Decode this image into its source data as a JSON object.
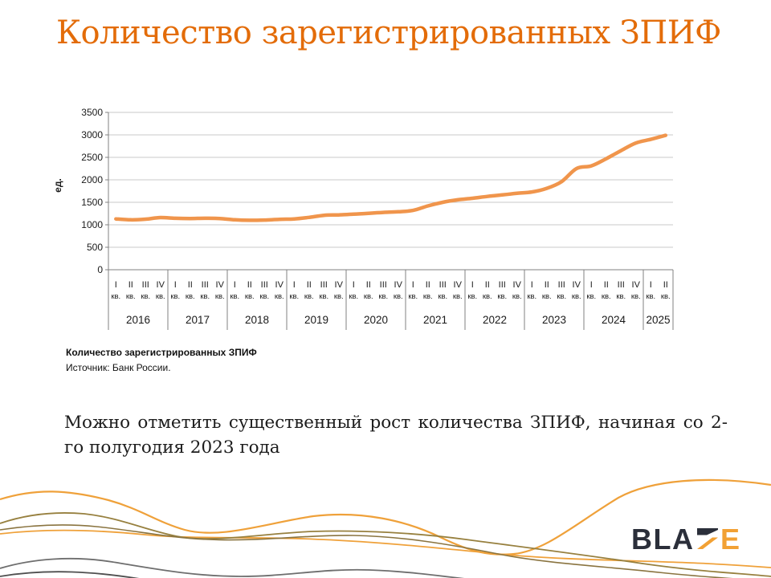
{
  "slide": {
    "title": "Количество зарегистрированных ЗПИФ"
  },
  "chart": {
    "caption_title": "Количество зарегистрированных ЗПИФ",
    "caption_source": "Источник:  Банк России."
  },
  "chart_data": {
    "type": "line",
    "title": "Количество зарегистрированных ЗПИФ",
    "xlabel": "",
    "ylabel": "ед.",
    "ylim": [
      0,
      3500
    ],
    "ytick_step": 500,
    "grid": true,
    "legend": false,
    "line_color": "#F0954C",
    "quarter_suffix": "кв.",
    "groups": [
      {
        "year": "2016",
        "quarters": [
          "I",
          "II",
          "III",
          "IV"
        ]
      },
      {
        "year": "2017",
        "quarters": [
          "I",
          "II",
          "III",
          "IV"
        ]
      },
      {
        "year": "2018",
        "quarters": [
          "I",
          "II",
          "III",
          "IV"
        ]
      },
      {
        "year": "2019",
        "quarters": [
          "I",
          "II",
          "III",
          "IV"
        ]
      },
      {
        "year": "2020",
        "quarters": [
          "I",
          "II",
          "III",
          "IV"
        ]
      },
      {
        "year": "2021",
        "quarters": [
          "I",
          "II",
          "III",
          "IV"
        ]
      },
      {
        "year": "2022",
        "quarters": [
          "I",
          "II",
          "III",
          "IV"
        ]
      },
      {
        "year": "2023",
        "quarters": [
          "I",
          "II",
          "III",
          "IV"
        ]
      },
      {
        "year": "2024",
        "quarters": [
          "I",
          "II",
          "III",
          "IV"
        ]
      },
      {
        "year": "2025",
        "quarters": [
          "I",
          "II"
        ]
      }
    ],
    "categories": [
      "I кв. 2016",
      "II кв. 2016",
      "III кв. 2016",
      "IV кв. 2016",
      "I кв. 2017",
      "II кв. 2017",
      "III кв. 2017",
      "IV кв. 2017",
      "I кв. 2018",
      "II кв. 2018",
      "III кв. 2018",
      "IV кв. 2018",
      "I кв. 2019",
      "II кв. 2019",
      "III кв. 2019",
      "IV кв. 2019",
      "I кв. 2020",
      "II кв. 2020",
      "III кв. 2020",
      "IV кв. 2020",
      "I кв. 2021",
      "II кв. 2021",
      "III кв. 2021",
      "IV кв. 2021",
      "I кв. 2022",
      "II кв. 2022",
      "III кв. 2022",
      "IV кв. 2022",
      "I кв. 2023",
      "II кв. 2023",
      "III кв. 2023",
      "IV кв. 2023",
      "I кв. 2024",
      "II кв. 2024",
      "III кв. 2024",
      "IV кв. 2024",
      "I кв. 2025",
      "II кв. 2025"
    ],
    "series": [
      {
        "name": "Количество зарегистрированных ЗПИФ",
        "values": [
          1130,
          1110,
          1125,
          1160,
          1145,
          1140,
          1145,
          1140,
          1110,
          1100,
          1105,
          1120,
          1130,
          1165,
          1210,
          1220,
          1235,
          1255,
          1275,
          1290,
          1320,
          1420,
          1500,
          1555,
          1590,
          1630,
          1665,
          1700,
          1730,
          1810,
          1960,
          2250,
          2310,
          2470,
          2650,
          2820,
          2900,
          2990
        ]
      }
    ]
  },
  "body": {
    "text": "Можно отметить существенный рост количества ЗПИФ, начиная со 2-го полугодия 2023 года"
  },
  "logo": {
    "text_dark": "BLA",
    "text_split": "Z",
    "text_accent": "E",
    "dark_color": "#2B2F3A",
    "accent_color": "#F2A134"
  },
  "colors": {
    "title_accent": "#E36C09",
    "chart_line": "#F0954C",
    "gridline": "#C9C9C9",
    "axis": "#808080",
    "wave_amber": "#EFA13A",
    "wave_olive": "#97803F",
    "wave_tan": "#8A7440",
    "wave_gray": "#6E6E6E",
    "wave_dark_gray": "#4F4F4F"
  }
}
